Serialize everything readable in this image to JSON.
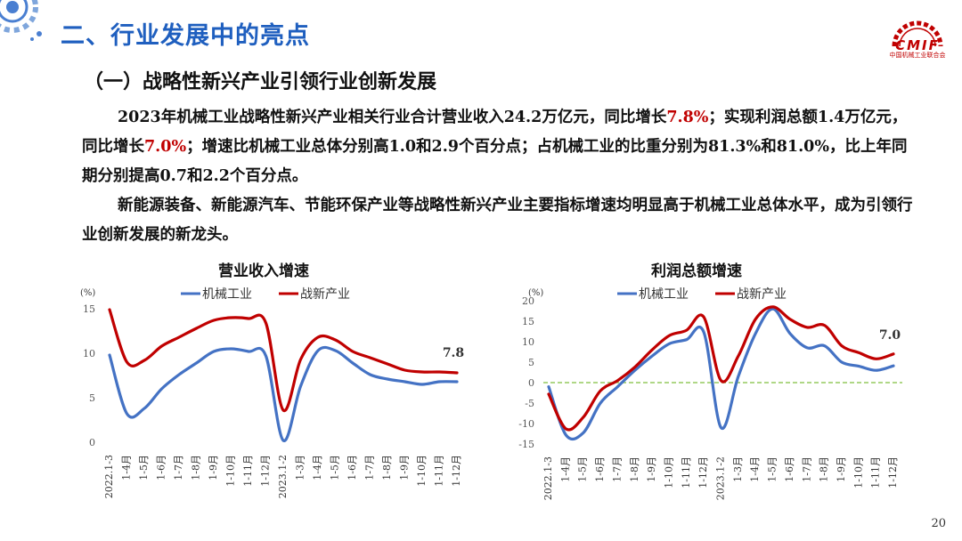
{
  "header": {
    "title": "二、行业发展中的亮点",
    "logo_text": "CMIF",
    "logo_caption": "中国机械工业联合会"
  },
  "section": {
    "subtitle": "（一）战略性新兴产业引领行业创新发展"
  },
  "paragraph1": {
    "t1": "2023年机械工业战略性新兴产业相关行业合计营业收入24.2万亿元，同比增长",
    "h1": "7.8%",
    "t2": "；实现利润总额1.4万亿元，同比增长",
    "h2": "7.0%",
    "t3": "；增速比机械工业总体分别高1.0和2.9个百分点；占机械工业的比重分别为81.3%和81.0%，比上年同期分别提高0.7和2.2个百分点。"
  },
  "paragraph2": "新能源装备、新能源汽车、节能环保产业等战略性新兴产业主要指标增速均明显高于机械工业总体水平，成为引领行业创新发展的新龙头。",
  "colors": {
    "blue": "#4472c4",
    "red": "#c00000",
    "zero_line": "#7fbf3f",
    "title_blue": "#1f5fbf"
  },
  "chart_data": [
    {
      "type": "line",
      "title": "营业收入增速",
      "ylabel": "(%)",
      "ylim": [
        0,
        15
      ],
      "yticks": [
        0,
        5,
        10,
        15
      ],
      "categories": [
        "2022.1-3",
        "1-4月",
        "1-5月",
        "1-6月",
        "1-7月",
        "1-8月",
        "1-9月",
        "1-10月",
        "1-11月",
        "1-12月",
        "2023.1-2",
        "1-3月",
        "1-4月",
        "1-5月",
        "1-6月",
        "1-7月",
        "1-8月",
        "1-9月",
        "1-10月",
        "1-11月",
        "1-12月"
      ],
      "series": [
        {
          "name": "机械工业",
          "color": "#4472c4",
          "values": [
            9.8,
            3.2,
            3.8,
            6.0,
            7.6,
            8.9,
            10.2,
            10.5,
            10.2,
            9.7,
            0.2,
            6.3,
            10.3,
            10.3,
            8.9,
            7.6,
            7.1,
            6.8,
            6.5,
            6.8,
            6.8
          ]
        },
        {
          "name": "战新产业",
          "color": "#c00000",
          "values": [
            14.9,
            9.0,
            9.2,
            10.8,
            11.8,
            12.8,
            13.7,
            14.0,
            13.9,
            13.4,
            3.6,
            9.3,
            11.8,
            11.5,
            10.2,
            9.5,
            8.8,
            8.1,
            7.9,
            7.9,
            7.8
          ]
        }
      ],
      "end_label": "7.8"
    },
    {
      "type": "line",
      "title": "利润总额增速",
      "ylabel": "(%)",
      "ylim": [
        -15,
        20
      ],
      "yticks": [
        -15,
        -10,
        -5,
        0,
        5,
        10,
        15,
        20
      ],
      "categories": [
        "2022.1-3",
        "1-4月",
        "1-5月",
        "1-6月",
        "1-7月",
        "1-8月",
        "1-9月",
        "1-10月",
        "1-11月",
        "1-12月",
        "2023.1-2",
        "1-3月",
        "1-4月",
        "1-5月",
        "1-6月",
        "1-7月",
        "1-8月",
        "1-9月",
        "1-10月",
        "1-11月",
        "1-12月"
      ],
      "series": [
        {
          "name": "机械工业",
          "color": "#4472c4",
          "values": [
            -1.0,
            -12.8,
            -12.3,
            -5.0,
            -1.0,
            3.0,
            6.5,
            9.5,
            10.5,
            12.3,
            -11.0,
            1.5,
            12.0,
            18.0,
            12.0,
            8.5,
            9.0,
            5.0,
            4.0,
            3.0,
            4.1
          ]
        },
        {
          "name": "战新产业",
          "color": "#c00000",
          "values": [
            -2.8,
            -11.3,
            -8.5,
            -2.0,
            0.5,
            3.8,
            8.0,
            11.5,
            12.8,
            16.0,
            0.5,
            6.5,
            15.5,
            18.5,
            15.5,
            13.5,
            14.0,
            9.0,
            7.3,
            5.8,
            7.0
          ]
        }
      ],
      "zero_line": true,
      "end_label": "7.0"
    }
  ],
  "page_number": "20"
}
